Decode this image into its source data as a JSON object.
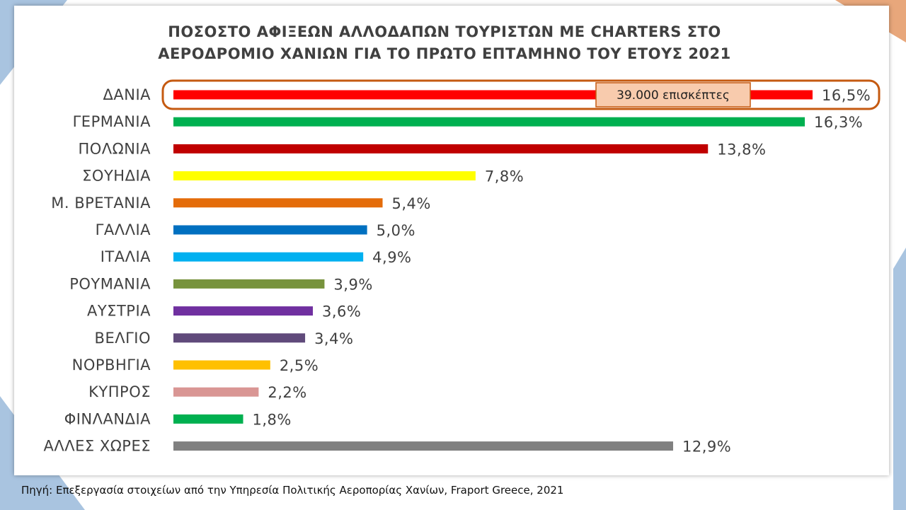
{
  "chart_data": {
    "type": "bar",
    "orientation": "horizontal",
    "title": "ΠΟΣΟΣΤΟ ΑΦΙΞΕΩΝ ΑΛΛΟΔΑΠΩΝ ΤΟΥΡΙΣΤΩΝ ΜΕ CHARTERS ΣΤΟ ΑΕΡΟΔΡΟΜΙΟ ΧΑΝΙΩΝ ΓΙΑ ΤΟ ΠΡΩΤΟ ΕΠΤΑΜΗΝΟ ΤΟΥ ΕΤΟΥΣ 2021",
    "title_lines": [
      "ΠΟΣΟΣΤΟ ΑΦΙΞΕΩΝ ΑΛΛΟΔΑΠΩΝ ΤΟΥΡΙΣΤΩΝ ΜΕ CHARTERS ΣΤΟ",
      "ΑΕΡΟΔΡΟΜΙΟ ΧΑΝΙΩΝ ΓΙΑ ΤΟ ΠΡΩΤΟ ΕΠΤΑΜΗΝΟ ΤΟΥ ΕΤΟΥΣ 2021"
    ],
    "categories": [
      "ΔΑΝΙΑ",
      "ΓΕΡΜΑΝΙΑ",
      "ΠΟΛΩΝΙΑ",
      "ΣΟΥΗΔΙΑ",
      "Μ. ΒΡΕΤΑΝΙΑ",
      "ΓΑΛΛΙΑ",
      "ΙΤΑΛΙΑ",
      "ΡΟΥΜΑΝΙΑ",
      "ΑΥΣΤΡΙΑ",
      "ΒΕΛΓΙΟ",
      "ΝΟΡΒΗΓΙΑ",
      "ΚΥΠΡΟΣ",
      "ΦΙΝΛΑΝΔΙΑ",
      "ΑΛΛΕΣ ΧΩΡΕΣ"
    ],
    "values": [
      16.5,
      16.3,
      13.8,
      7.8,
      5.4,
      5.0,
      4.9,
      3.9,
      3.6,
      3.4,
      2.5,
      2.2,
      1.8,
      12.9
    ],
    "value_labels": [
      "16,5%",
      "16,3%",
      "13,8%",
      "7,8%",
      "5,4%",
      "5,0%",
      "4,9%",
      "3,9%",
      "3,6%",
      "3,4%",
      "2,5%",
      "2,2%",
      "1,8%",
      "12,9%"
    ],
    "colors": [
      "#ff0000",
      "#00b050",
      "#c00000",
      "#ffff00",
      "#e46c0a",
      "#0070c0",
      "#00b0f0",
      "#77933c",
      "#7030a0",
      "#604a7b",
      "#ffc000",
      "#d99694",
      "#00b050",
      "#808080"
    ],
    "xlim": [
      0,
      16.5
    ],
    "grid": false,
    "legend": "none",
    "annotation": {
      "category": "ΔΑΝΙΑ",
      "text": "39.000 επισκέπτες",
      "highlight_color": "#c55a11",
      "box_fill": "#f8cbad"
    }
  },
  "source_note": "Πηγή: Επεξεργασία στοιχείων από την Υπηρεσία Πολιτικής Αεροπορίας Χανίων, Fraport Greece, 2021",
  "colors": {
    "background_blue": "#a9c4e0",
    "background_orange": "#e8a77b",
    "label_text": "#404040"
  }
}
